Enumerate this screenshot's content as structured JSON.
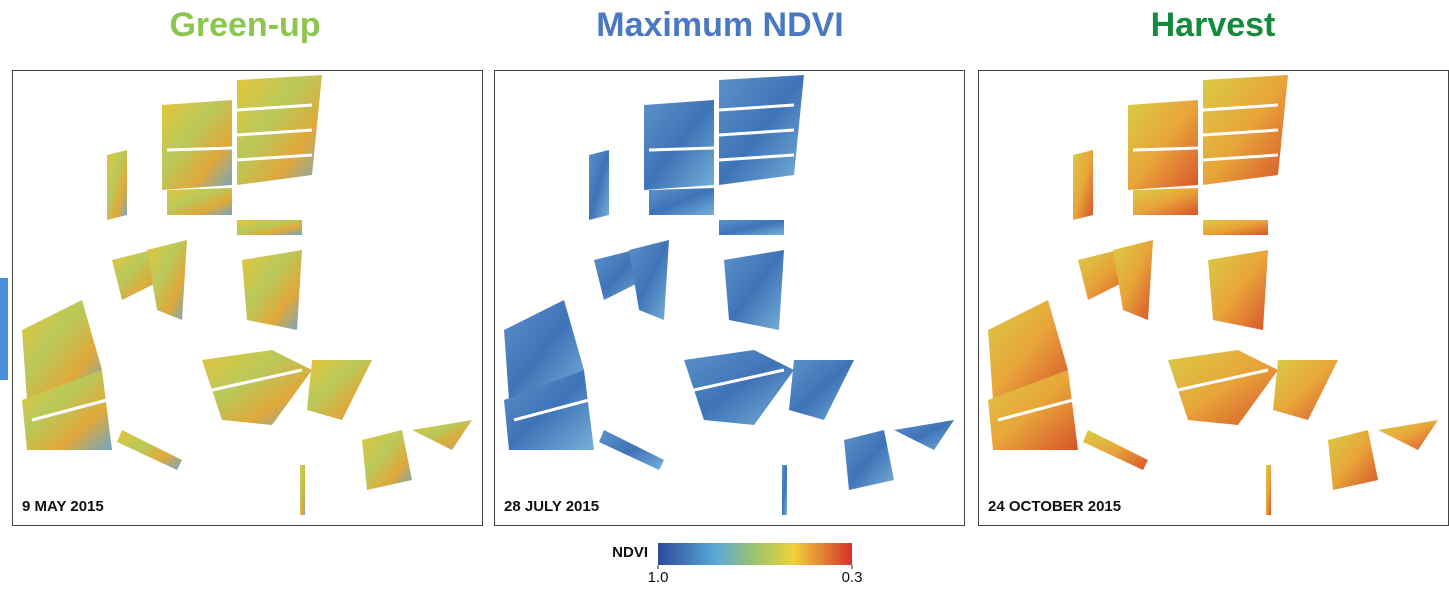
{
  "panels": [
    {
      "title": "Green-up",
      "date": "9 MAY 2015"
    },
    {
      "title": "Maximum NDVI",
      "date": "28 JULY 2015"
    },
    {
      "title": "Harvest",
      "date": "24 OCTOBER 2015"
    }
  ],
  "legend": {
    "label": "NDVI",
    "lim": [
      1,
      0.3
    ],
    "ticks": [
      {
        "value": 1,
        "label": "1.0"
      },
      0.3
    ]
  }
}
